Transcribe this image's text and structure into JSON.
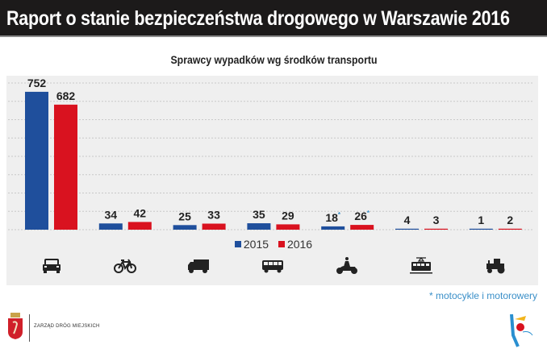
{
  "header": {
    "title": "Raport o stanie bezpieczeństwa drogowego w Warszawie 2016"
  },
  "chart_data": {
    "type": "bar",
    "title": "Sprawcy wypadków wg środków transportu",
    "categories": [
      "samochód osobowy",
      "rower",
      "samochód ciężarowy",
      "autobus",
      "motocykl*",
      "tramwaj",
      "ciągnik"
    ],
    "category_icons": [
      "car-icon",
      "bicycle-icon",
      "truck-icon",
      "bus-icon",
      "motorcycle-icon",
      "tram-icon",
      "tractor-icon"
    ],
    "series": [
      {
        "name": "2015",
        "color": "#1f4f9c",
        "values": [
          752,
          34,
          25,
          35,
          18,
          4,
          1
        ],
        "labels": [
          "752",
          "34",
          "25",
          "35",
          "18*",
          "4",
          "1"
        ]
      },
      {
        "name": "2016",
        "color": "#d9121f",
        "values": [
          682,
          42,
          33,
          29,
          26,
          3,
          2
        ],
        "labels": [
          "682",
          "42",
          "33",
          "29",
          "26*",
          "3",
          "2"
        ]
      }
    ],
    "ylim": [
      0,
      800
    ],
    "grid": true,
    "legend_position": "bottom-center",
    "footnote": "* motocykle i motorowery"
  },
  "footer": {
    "organization": "ZARZĄD DRÓG MIEJSKICH"
  }
}
